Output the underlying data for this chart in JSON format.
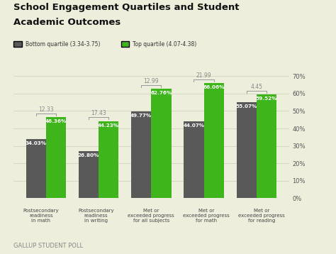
{
  "title_line1": "School Engagement Quartiles and Student",
  "title_line2": "Academic Outcomes",
  "categories": [
    "Postsecondary\nreadiness\nin math",
    "Postsecondary\nreadiness\nin writing",
    "Met or\nexceeded progress\nfor all subjects",
    "Met or\nexceeded progress\nfor math",
    "Met or\nexceeded progress\nfor reading"
  ],
  "bottom_values": [
    34.03,
    26.8,
    49.77,
    44.07,
    55.07
  ],
  "top_values": [
    46.36,
    44.23,
    62.76,
    66.06,
    59.52
  ],
  "differences": [
    12.33,
    17.43,
    12.99,
    21.99,
    4.45
  ],
  "bottom_color": "#595959",
  "top_color": "#3db51b",
  "background_color": "#eeeedd",
  "legend_bottom": "Bottom quartile (3.34-3.75)",
  "legend_top": "Top quartile (4.07-4.38)",
  "footer": "GALLUP STUDENT POLL",
  "ylim": [
    0,
    70
  ],
  "yticks": [
    0,
    10,
    20,
    30,
    40,
    50,
    60,
    70
  ]
}
